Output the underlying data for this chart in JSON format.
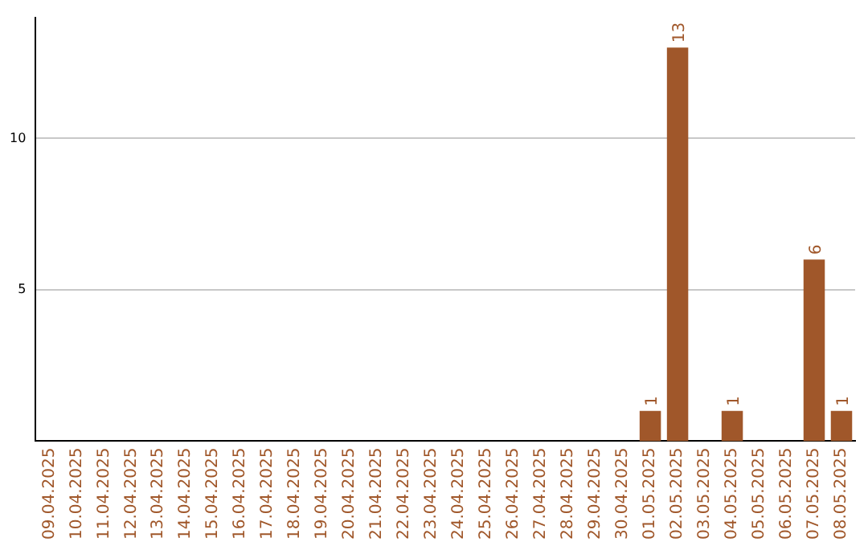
{
  "chart_data": {
    "type": "bar",
    "categories": [
      "09.04.2025",
      "10.04.2025",
      "11.04.2025",
      "12.04.2025",
      "13.04.2025",
      "14.04.2025",
      "15.04.2025",
      "16.04.2025",
      "17.04.2025",
      "18.04.2025",
      "19.04.2025",
      "20.04.2025",
      "21.04.2025",
      "22.04.2025",
      "23.04.2025",
      "24.04.2025",
      "25.04.2025",
      "26.04.2025",
      "27.04.2025",
      "28.04.2025",
      "29.04.2025",
      "30.04.2025",
      "01.05.2025",
      "02.05.2025",
      "03.05.2025",
      "04.05.2025",
      "05.05.2025",
      "06.05.2025",
      "07.05.2025",
      "08.05.2025"
    ],
    "values": [
      0,
      0,
      0,
      0,
      0,
      0,
      0,
      0,
      0,
      0,
      0,
      0,
      0,
      0,
      0,
      0,
      0,
      0,
      0,
      0,
      0,
      0,
      1,
      13,
      0,
      1,
      0,
      0,
      6,
      1
    ],
    "value_labels": [
      null,
      null,
      null,
      null,
      null,
      null,
      null,
      null,
      null,
      null,
      null,
      null,
      null,
      null,
      null,
      null,
      null,
      null,
      null,
      null,
      null,
      null,
      "1",
      "13",
      null,
      "1",
      null,
      null,
      "6",
      "1"
    ],
    "color": "#a0572a",
    "ylim": [
      0,
      14
    ],
    "yticks": [
      5,
      10
    ],
    "grid": "y",
    "legend": false
  }
}
